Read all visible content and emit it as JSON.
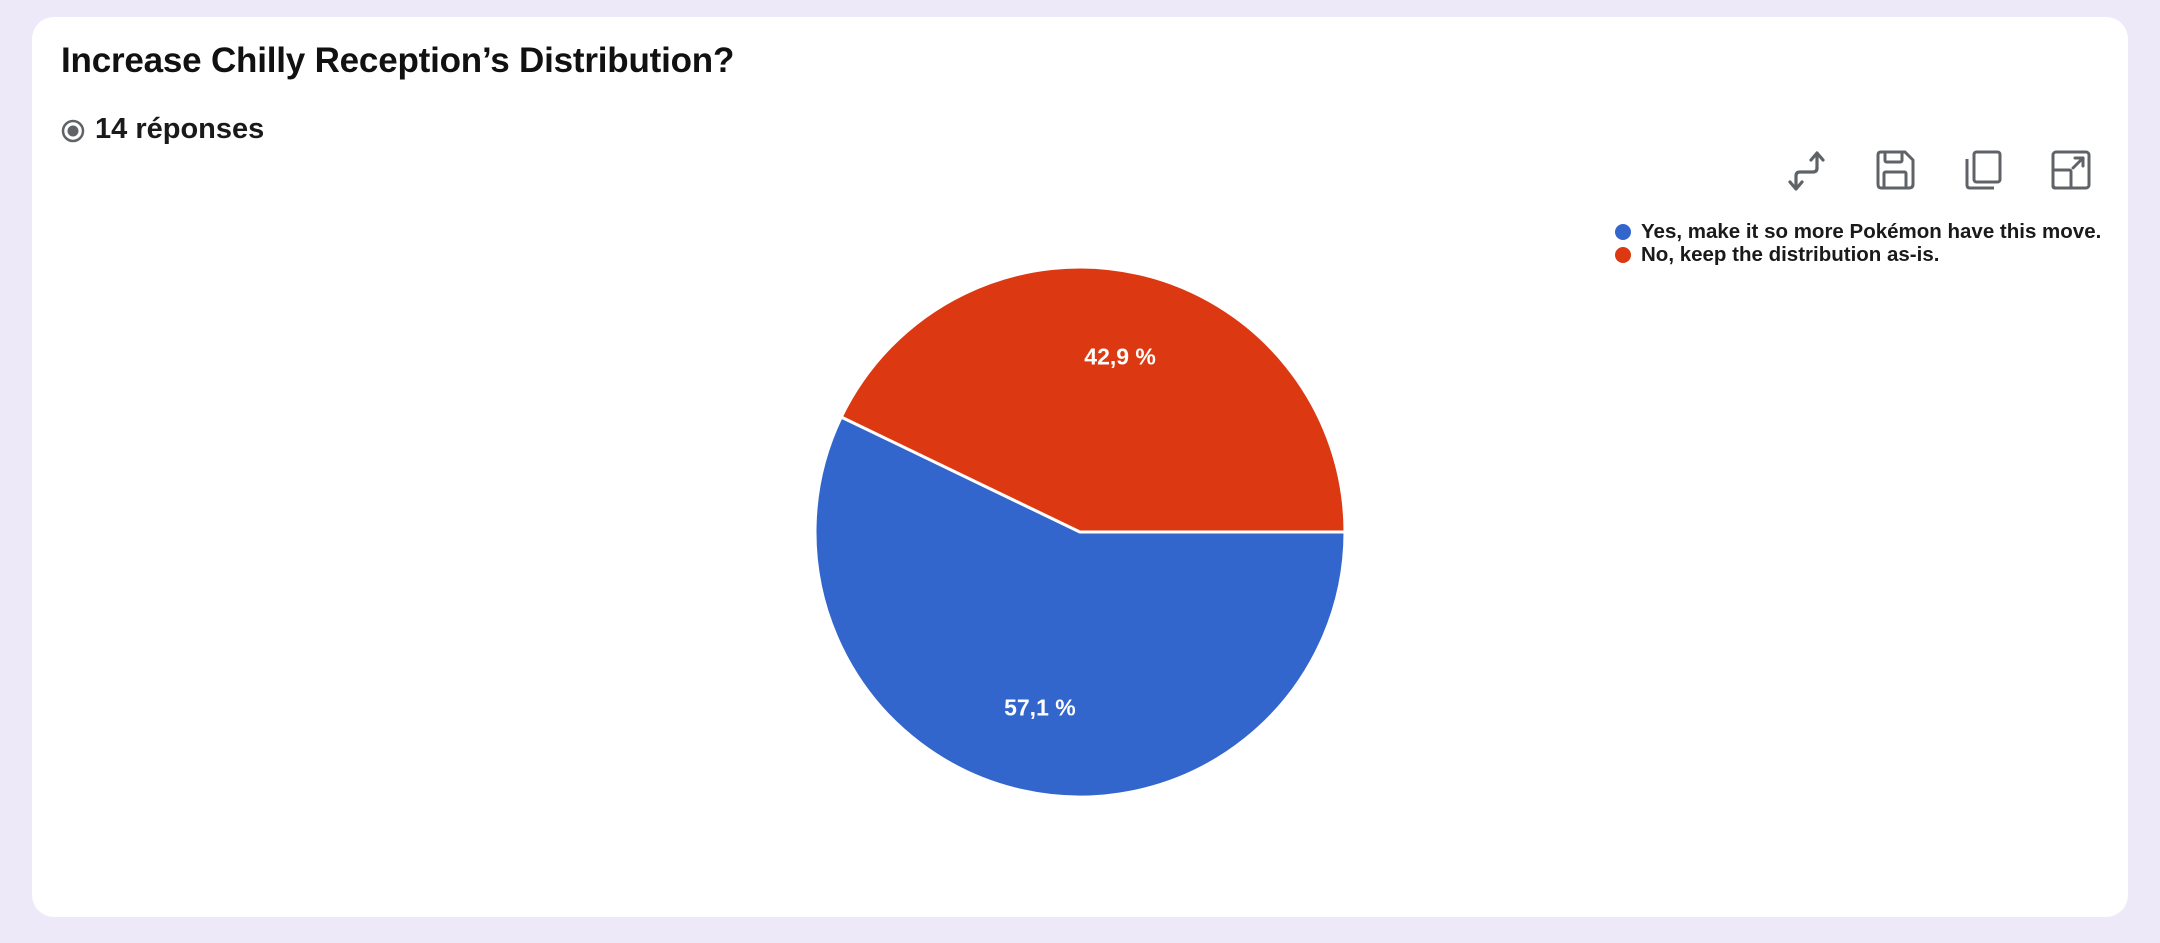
{
  "page": {
    "title": "Increase Chilly Reception’s Distribution?",
    "responses_label": "14 réponses"
  },
  "toolbar": {
    "icons": [
      "swap-arrows-icon",
      "save-icon",
      "copy-icon",
      "expand-icon"
    ]
  },
  "chart_data": {
    "type": "pie",
    "title": "",
    "total_responses": 14,
    "categories": [
      "Yes, make it so more Pokémon have this move.",
      "No, keep the distribution as-is."
    ],
    "values": [
      8,
      6
    ],
    "percent_labels": [
      "57,1 %",
      "42,9 %"
    ],
    "colors": [
      "#3366cc",
      "#dc3912"
    ],
    "legend_position": "top-right"
  }
}
